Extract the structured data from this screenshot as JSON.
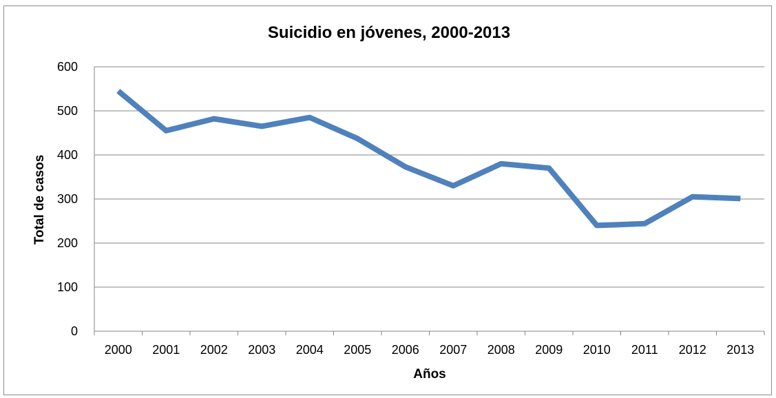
{
  "chart_data": {
    "type": "line",
    "title": "Suicidio en jóvenes, 2000-2013",
    "xlabel": "Años",
    "ylabel": "Total de casos",
    "categories": [
      "2000",
      "2001",
      "2002",
      "2003",
      "2004",
      "2005",
      "2006",
      "2007",
      "2008",
      "2009",
      "2010",
      "2011",
      "2012",
      "2013"
    ],
    "series": [
      {
        "values": [
          545,
          455,
          482,
          465,
          485,
          437,
          373,
          330,
          380,
          370,
          240,
          244,
          305,
          301
        ]
      }
    ],
    "ylim": [
      0,
      600
    ],
    "yticks": [
      "0",
      "100",
      "200",
      "300",
      "400",
      "500",
      "600"
    ],
    "grid": true,
    "legend": "none",
    "colors": {
      "line": "#4f81bd",
      "grid": "#868686",
      "axis": "#868686"
    }
  }
}
